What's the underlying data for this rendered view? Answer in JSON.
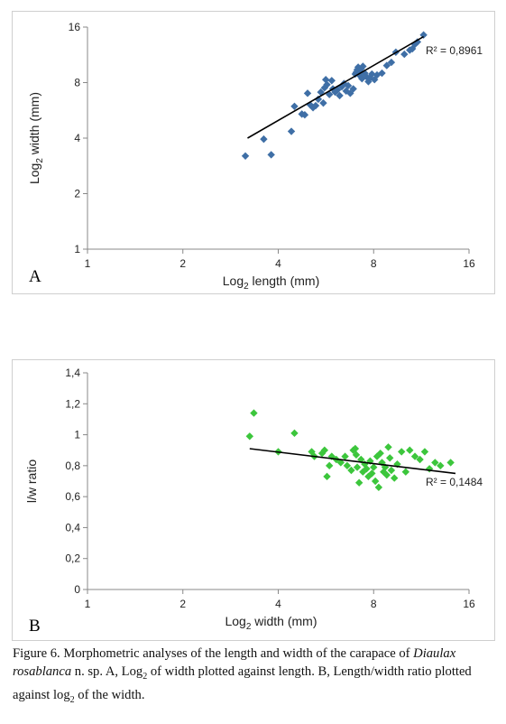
{
  "chart_data": [
    {
      "type": "scatter",
      "panel_label": "A",
      "xlabel_prefix": "Log",
      "xlabel_sub": "2",
      "xlabel_suffix": " length (mm)",
      "ylabel_prefix": "Log",
      "ylabel_sub": "2",
      "ylabel_suffix": " width (mm)",
      "x_scale": "log2",
      "y_scale": "log2",
      "xlim": [
        1,
        16
      ],
      "ylim": [
        1,
        16
      ],
      "x_ticks": [
        {
          "value": 1,
          "label": "1"
        },
        {
          "value": 2,
          "label": "2"
        },
        {
          "value": 4,
          "label": "4"
        },
        {
          "value": 8,
          "label": "8"
        },
        {
          "value": 16,
          "label": "16"
        }
      ],
      "y_ticks": [
        {
          "value": 1,
          "label": "1"
        },
        {
          "value": 2,
          "label": "2"
        },
        {
          "value": 4,
          "label": "4"
        },
        {
          "value": 8,
          "label": "8"
        },
        {
          "value": 16,
          "label": "16"
        }
      ],
      "color": "#3f6fa6",
      "marker": "diamond",
      "r2_label": "R² = 0,8961",
      "trendline": {
        "x": [
          3.2,
          11.5
        ],
        "y": [
          4.0,
          14.2
        ]
      },
      "points": [
        [
          3.15,
          3.2
        ],
        [
          3.6,
          3.95
        ],
        [
          3.8,
          3.25
        ],
        [
          4.4,
          4.35
        ],
        [
          4.5,
          5.95
        ],
        [
          4.75,
          5.4
        ],
        [
          4.85,
          5.35
        ],
        [
          4.95,
          7.0
        ],
        [
          5.05,
          6.05
        ],
        [
          5.15,
          5.85
        ],
        [
          5.25,
          6.0
        ],
        [
          5.35,
          6.5
        ],
        [
          5.45,
          7.1
        ],
        [
          5.55,
          6.2
        ],
        [
          5.6,
          7.5
        ],
        [
          5.65,
          8.3
        ],
        [
          5.7,
          7.8
        ],
        [
          5.8,
          6.9
        ],
        [
          5.9,
          8.2
        ],
        [
          5.95,
          7.4
        ],
        [
          6.05,
          7.1
        ],
        [
          6.15,
          7.3
        ],
        [
          6.25,
          6.8
        ],
        [
          6.35,
          7.6
        ],
        [
          6.45,
          7.9
        ],
        [
          6.55,
          7.2
        ],
        [
          6.65,
          7.7
        ],
        [
          6.75,
          7.0
        ],
        [
          6.9,
          7.4
        ],
        [
          7.0,
          8.9
        ],
        [
          7.05,
          9.1
        ],
        [
          7.1,
          9.4
        ],
        [
          7.15,
          9.7
        ],
        [
          7.2,
          9.2
        ],
        [
          7.25,
          8.7
        ],
        [
          7.3,
          9.5
        ],
        [
          7.35,
          8.4
        ],
        [
          7.4,
          9.8
        ],
        [
          7.5,
          9.0
        ],
        [
          7.6,
          8.6
        ],
        [
          7.7,
          8.1
        ],
        [
          7.8,
          8.5
        ],
        [
          7.9,
          8.9
        ],
        [
          8.05,
          8.3
        ],
        [
          8.2,
          8.8
        ],
        [
          8.5,
          9.0
        ],
        [
          8.8,
          9.9
        ],
        [
          9.1,
          10.3
        ],
        [
          9.4,
          11.7
        ],
        [
          10.0,
          11.4
        ],
        [
          10.4,
          12.0
        ],
        [
          10.8,
          12.9
        ],
        [
          11.0,
          13.3
        ],
        [
          10.6,
          12.2
        ],
        [
          11.5,
          14.5
        ]
      ]
    },
    {
      "type": "scatter",
      "panel_label": "B",
      "xlabel_prefix": "Log",
      "xlabel_sub": "2",
      "xlabel_suffix": " width (mm)",
      "ylabel": "l/w ratio",
      "x_scale": "log2",
      "y_scale": "linear",
      "xlim": [
        1,
        16
      ],
      "ylim": [
        0,
        1.4
      ],
      "x_ticks": [
        {
          "value": 1,
          "label": "1"
        },
        {
          "value": 2,
          "label": "2"
        },
        {
          "value": 4,
          "label": "4"
        },
        {
          "value": 8,
          "label": "8"
        },
        {
          "value": 16,
          "label": "16"
        }
      ],
      "y_ticks": [
        {
          "value": 0,
          "label": "0"
        },
        {
          "value": 0.2,
          "label": "0,2"
        },
        {
          "value": 0.4,
          "label": "0,4"
        },
        {
          "value": 0.6,
          "label": "0,6"
        },
        {
          "value": 0.8,
          "label": "0,8"
        },
        {
          "value": 1.0,
          "label": "1"
        },
        {
          "value": 1.2,
          "label": "1,2"
        },
        {
          "value": 1.4,
          "label": "1,4"
        }
      ],
      "color": "#3cc63c",
      "marker": "diamond",
      "r2_label": "R² = 0,1484",
      "trendline": {
        "x": [
          3.25,
          14.5
        ],
        "y": [
          0.91,
          0.75
        ]
      },
      "points": [
        [
          3.25,
          0.99
        ],
        [
          3.35,
          1.14
        ],
        [
          4.0,
          0.89
        ],
        [
          4.5,
          1.01
        ],
        [
          5.1,
          0.89
        ],
        [
          5.2,
          0.86
        ],
        [
          5.5,
          0.88
        ],
        [
          5.6,
          0.9
        ],
        [
          5.7,
          0.73
        ],
        [
          5.8,
          0.8
        ],
        [
          5.9,
          0.86
        ],
        [
          6.1,
          0.84
        ],
        [
          6.3,
          0.82
        ],
        [
          6.5,
          0.86
        ],
        [
          6.6,
          0.8
        ],
        [
          6.8,
          0.77
        ],
        [
          6.9,
          0.9
        ],
        [
          7.0,
          0.91
        ],
        [
          7.05,
          0.87
        ],
        [
          7.1,
          0.79
        ],
        [
          7.2,
          0.69
        ],
        [
          7.3,
          0.84
        ],
        [
          7.4,
          0.76
        ],
        [
          7.5,
          0.81
        ],
        [
          7.6,
          0.78
        ],
        [
          7.7,
          0.73
        ],
        [
          7.8,
          0.83
        ],
        [
          7.9,
          0.75
        ],
        [
          8.0,
          0.79
        ],
        [
          8.1,
          0.7
        ],
        [
          8.2,
          0.86
        ],
        [
          8.3,
          0.66
        ],
        [
          8.4,
          0.88
        ],
        [
          8.5,
          0.82
        ],
        [
          8.6,
          0.76
        ],
        [
          8.7,
          0.79
        ],
        [
          8.8,
          0.74
        ],
        [
          8.9,
          0.92
        ],
        [
          9.0,
          0.85
        ],
        [
          9.1,
          0.77
        ],
        [
          9.3,
          0.72
        ],
        [
          9.5,
          0.81
        ],
        [
          9.8,
          0.89
        ],
        [
          10.1,
          0.76
        ],
        [
          10.4,
          0.9
        ],
        [
          10.8,
          0.86
        ],
        [
          11.2,
          0.84
        ],
        [
          11.6,
          0.89
        ],
        [
          12.0,
          0.78
        ],
        [
          12.5,
          0.82
        ],
        [
          13.0,
          0.8
        ],
        [
          14.0,
          0.82
        ]
      ]
    }
  ],
  "caption": {
    "prefix": "Figure 6. Morphometric analyses of the length and width of the carapace of ",
    "species": "Diaulax rosablanca",
    "mid": " n. sp. A, Log",
    "sub1": "2",
    "mid2": " of width plotted against length. B, Length/width ratio plotted against log",
    "sub2": "2",
    "suffix": " of the width."
  }
}
